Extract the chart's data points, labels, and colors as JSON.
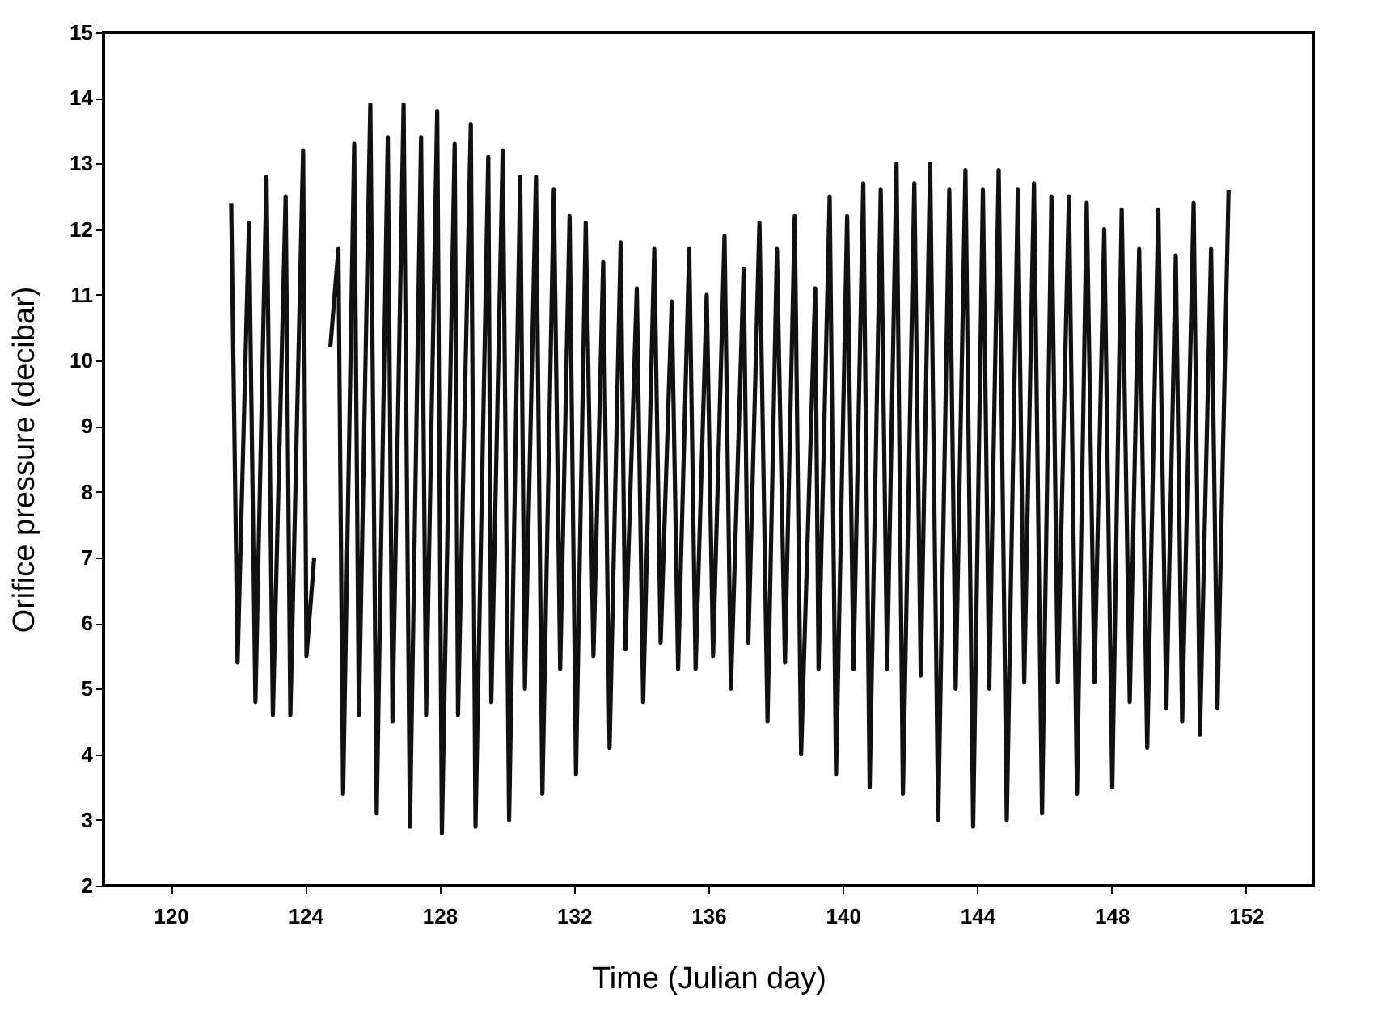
{
  "chart_data": {
    "type": "line",
    "xlabel": "Time (Julian day)",
    "ylabel": "Orifice pressure (decibar)",
    "xlim": [
      118,
      154
    ],
    "ylim": [
      2,
      15
    ],
    "xticks": [
      120,
      124,
      128,
      132,
      136,
      140,
      144,
      148,
      152
    ],
    "yticks": [
      2,
      3,
      4,
      5,
      6,
      7,
      8,
      9,
      10,
      11,
      12,
      13,
      14,
      15
    ],
    "grid": false,
    "legend": false,
    "marker": "none",
    "line_style": "solid",
    "x": [
      121.8,
      121.99,
      122.33,
      122.52,
      122.85,
      123.04,
      123.42,
      123.56,
      123.94,
      124.04,
      124.27,
      124.5,
      124.75,
      124.99,
      125.13,
      125.46,
      125.6,
      125.94,
      126.13,
      126.46,
      126.6,
      126.93,
      127.12,
      127.45,
      127.6,
      127.93,
      128.07,
      128.45,
      128.55,
      128.93,
      129.07,
      129.45,
      129.54,
      129.88,
      130.07,
      130.4,
      130.54,
      130.87,
      131.06,
      131.4,
      131.59,
      131.87,
      132.06,
      132.35,
      132.58,
      132.87,
      133.06,
      133.39,
      133.53,
      133.87,
      134.06,
      134.39,
      134.58,
      134.91,
      135.1,
      135.43,
      135.62,
      135.95,
      136.14,
      136.48,
      136.67,
      137.05,
      137.19,
      137.52,
      137.76,
      138.04,
      138.28,
      138.57,
      138.76,
      139.18,
      139.28,
      139.61,
      139.8,
      140.13,
      140.32,
      140.61,
      140.8,
      141.13,
      141.32,
      141.6,
      141.79,
      142.13,
      142.32,
      142.6,
      142.84,
      143.17,
      143.36,
      143.65,
      143.88,
      144.17,
      144.36,
      144.64,
      144.88,
      145.21,
      145.4,
      145.69,
      145.93,
      146.21,
      146.4,
      146.73,
      146.97,
      147.26,
      147.49,
      147.78,
      148.02,
      148.3,
      148.54,
      148.82,
      149.06,
      149.39,
      149.63,
      149.91,
      150.1,
      150.44,
      150.63,
      150.96,
      151.15,
      151.48
    ],
    "series": [
      {
        "color": "#111111",
        "values": [
          12.4,
          5.4,
          12.1,
          4.8,
          12.8,
          4.6,
          12.5,
          4.6,
          13.2,
          5.5,
          7.0,
          null,
          10.2,
          11.7,
          3.4,
          13.3,
          4.6,
          13.9,
          3.1,
          13.4,
          4.5,
          13.9,
          2.9,
          13.4,
          4.6,
          13.8,
          2.8,
          13.3,
          4.6,
          13.6,
          2.9,
          13.1,
          4.8,
          13.2,
          3.0,
          12.8,
          5.0,
          12.8,
          3.4,
          12.6,
          5.3,
          12.2,
          3.7,
          12.1,
          5.5,
          11.5,
          4.1,
          11.8,
          5.6,
          11.1,
          4.8,
          11.7,
          5.7,
          10.9,
          5.3,
          11.7,
          5.3,
          11.0,
          5.5,
          11.9,
          5.0,
          11.4,
          5.7,
          12.1,
          4.5,
          11.7,
          5.4,
          12.2,
          4.0,
          11.1,
          5.3,
          12.5,
          3.7,
          12.2,
          5.3,
          12.7,
          3.5,
          12.6,
          5.3,
          13.0,
          3.4,
          12.7,
          5.2,
          13.0,
          3.0,
          12.6,
          5.0,
          12.9,
          2.9,
          12.6,
          5.0,
          12.9,
          3.0,
          12.6,
          5.1,
          12.7,
          3.1,
          12.5,
          5.1,
          12.5,
          3.4,
          12.4,
          5.1,
          12.0,
          3.5,
          12.3,
          4.8,
          11.7,
          4.1,
          12.3,
          4.7,
          11.6,
          4.5,
          12.4,
          4.3,
          11.7,
          4.7,
          12.6
        ]
      }
    ]
  }
}
